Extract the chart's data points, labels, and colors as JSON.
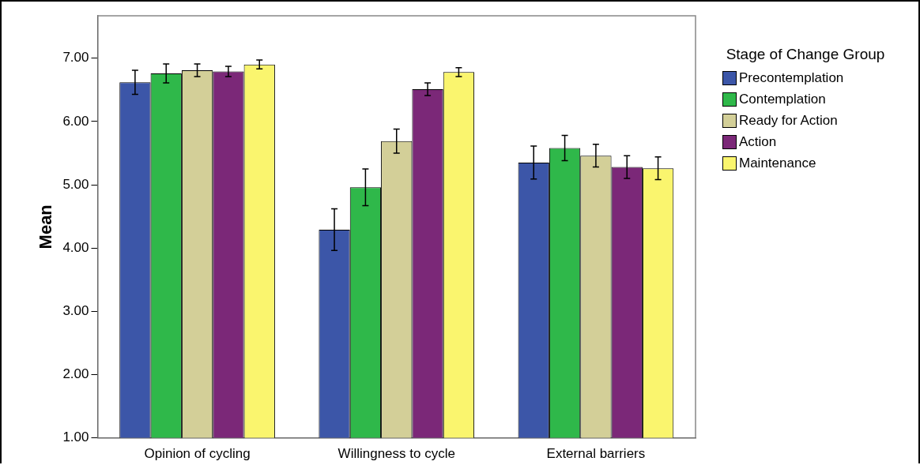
{
  "chart_data": {
    "type": "bar",
    "ylabel": "Mean",
    "legend_title": "Stage of Change Group",
    "legend": "top right",
    "grid": false,
    "categories": [
      "Opinion of cycling",
      "Willingness to cycle",
      "External barriers"
    ],
    "ylim": [
      1,
      7.67
    ],
    "yticks": [
      {
        "value": 1,
        "label": "1.00"
      },
      {
        "value": 2,
        "label": "2.00"
      },
      {
        "value": 3,
        "label": "3.00"
      },
      {
        "value": 4,
        "label": "4.00"
      },
      {
        "value": 5,
        "label": "5.00"
      },
      {
        "value": 6,
        "label": "6.00"
      },
      {
        "value": 7,
        "label": "7.00"
      }
    ],
    "series": [
      {
        "name": "Precontemplation",
        "color": "#3c56a8",
        "values": [
          6.62,
          4.29,
          5.35
        ],
        "errors": [
          0.19,
          0.33,
          0.26
        ]
      },
      {
        "name": "Contemplation",
        "color": "#2fb84a",
        "values": [
          6.76,
          4.96,
          5.58
        ],
        "errors": [
          0.15,
          0.29,
          0.2
        ]
      },
      {
        "name": "Ready for Action",
        "color": "#d3cf98",
        "values": [
          6.81,
          5.69,
          5.46
        ],
        "errors": [
          0.1,
          0.19,
          0.18
        ]
      },
      {
        "name": "Action",
        "color": "#7b2878",
        "values": [
          6.79,
          6.51,
          5.28
        ],
        "errors": [
          0.08,
          0.1,
          0.18
        ]
      },
      {
        "name": "Maintenance",
        "color": "#faf56e",
        "values": [
          6.9,
          6.78,
          5.26
        ],
        "errors": [
          0.07,
          0.07,
          0.18
        ]
      }
    ]
  }
}
